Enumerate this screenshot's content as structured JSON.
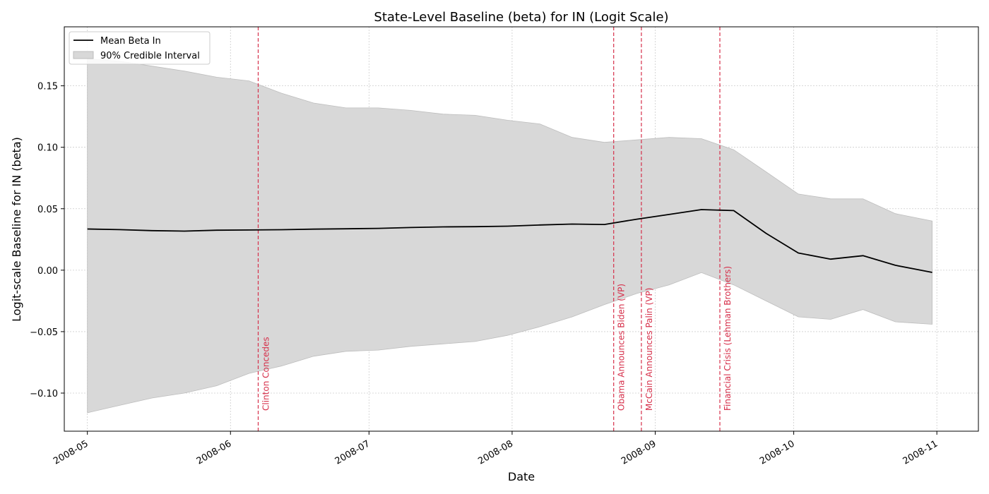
{
  "chart_data": {
    "type": "line",
    "title": "State-Level Baseline (beta) for IN (Logit Scale)",
    "xlabel": "Date",
    "ylabel": "Logit-scale Baseline for IN (beta)",
    "xlim": [
      "2008-04-26",
      "2008-11-10"
    ],
    "ylim": [
      -0.131,
      0.198
    ],
    "x_ticks": [
      "2008-05-01",
      "2008-06-01",
      "2008-07-01",
      "2008-08-01",
      "2008-09-01",
      "2008-10-01",
      "2008-11-01"
    ],
    "x_tick_labels": [
      "2008-05",
      "2008-06",
      "2008-07",
      "2008-08",
      "2008-09",
      "2008-10",
      "2008-11"
    ],
    "y_ticks": [
      -0.1,
      -0.05,
      0.0,
      0.05,
      0.1,
      0.15
    ],
    "y_tick_labels": [
      "−0.10",
      "−0.05",
      "0.00",
      "0.05",
      "0.10",
      "0.15"
    ],
    "grid": true,
    "legend_position": "top-left",
    "legend": [
      {
        "label": "Mean Beta In",
        "kind": "line",
        "color": "#000000"
      },
      {
        "label": "90% Credible Interval",
        "kind": "band",
        "color": "#d8d8d8"
      }
    ],
    "colors": {
      "mean": "#000000",
      "band_fill": "#d8d8d8",
      "band_edge": "#bdbdbd",
      "event": "#d62f4a",
      "grid": "#cccccc"
    },
    "series": [
      {
        "name": "Mean Beta In",
        "x": [
          "2008-05-01",
          "2008-05-08",
          "2008-05-15",
          "2008-05-22",
          "2008-05-29",
          "2008-06-05",
          "2008-06-12",
          "2008-06-19",
          "2008-06-26",
          "2008-07-03",
          "2008-07-10",
          "2008-07-17",
          "2008-07-24",
          "2008-07-31",
          "2008-08-07",
          "2008-08-14",
          "2008-08-21",
          "2008-08-28",
          "2008-09-04",
          "2008-09-11",
          "2008-09-18",
          "2008-09-25",
          "2008-10-02",
          "2008-10-09",
          "2008-10-16",
          "2008-10-23",
          "2008-10-31"
        ],
        "values": [
          0.0335,
          0.033,
          0.0322,
          0.0318,
          0.0325,
          0.0327,
          0.0329,
          0.0334,
          0.0337,
          0.034,
          0.0347,
          0.0352,
          0.0354,
          0.0358,
          0.0368,
          0.0375,
          0.0372,
          0.0415,
          0.0453,
          0.0493,
          0.0485,
          0.03,
          0.014,
          0.009,
          0.0118,
          0.004,
          -0.0018
        ]
      },
      {
        "name": "90% Credible Interval",
        "x": [
          "2008-05-01",
          "2008-05-08",
          "2008-05-15",
          "2008-05-22",
          "2008-05-29",
          "2008-06-05",
          "2008-06-12",
          "2008-06-19",
          "2008-06-26",
          "2008-07-03",
          "2008-07-10",
          "2008-07-17",
          "2008-07-24",
          "2008-07-31",
          "2008-08-07",
          "2008-08-14",
          "2008-08-21",
          "2008-08-28",
          "2008-09-04",
          "2008-09-11",
          "2008-09-18",
          "2008-09-25",
          "2008-10-02",
          "2008-10-09",
          "2008-10-16",
          "2008-10-23",
          "2008-10-31"
        ],
        "lower": [
          -0.116,
          -0.11,
          -0.104,
          -0.1,
          -0.094,
          -0.084,
          -0.078,
          -0.07,
          -0.066,
          -0.065,
          -0.062,
          -0.06,
          -0.058,
          -0.053,
          -0.046,
          -0.038,
          -0.028,
          -0.019,
          -0.012,
          -0.002,
          -0.012,
          -0.025,
          -0.038,
          -0.04,
          -0.032,
          -0.042,
          -0.044
        ],
        "upper": [
          0.172,
          0.17,
          0.166,
          0.162,
          0.157,
          0.154,
          0.144,
          0.136,
          0.132,
          0.132,
          0.13,
          0.127,
          0.126,
          0.122,
          0.119,
          0.108,
          0.104,
          0.106,
          0.108,
          0.107,
          0.098,
          0.08,
          0.062,
          0.058,
          0.058,
          0.046,
          0.04
        ]
      }
    ],
    "events": [
      {
        "date": "2008-06-07",
        "label": "Clinton Concedes"
      },
      {
        "date": "2008-08-23",
        "label": "Obama Announces Biden (VP)"
      },
      {
        "date": "2008-08-29",
        "label": "McCain Announces Palin (VP)"
      },
      {
        "date": "2008-09-15",
        "label": "Financial Crisis (Lehman Brothers)"
      }
    ]
  }
}
